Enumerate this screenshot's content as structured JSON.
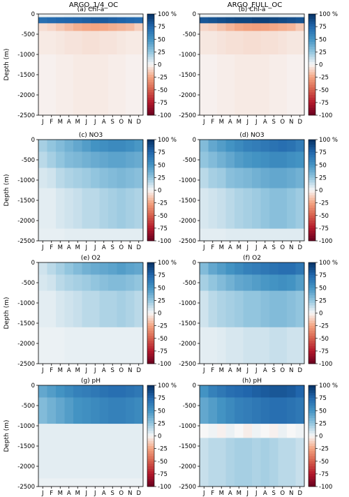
{
  "column_titles": [
    "ARGO_1/4_OC",
    "ARGO_FULL_OC"
  ],
  "colorbar": {
    "ticks": [
      100,
      75,
      50,
      25,
      0,
      -25,
      -50,
      -75,
      -100
    ],
    "tick_labels": [
      "100 %",
      "75",
      "50",
      "25",
      "0",
      "-25",
      "-50",
      "-75",
      "-100"
    ],
    "range": [
      -100,
      100
    ],
    "colormap": "RdBu",
    "colors": {
      "negative_end": "#67001f",
      "neutral": "#f7f7f7",
      "positive_end": "#053061"
    }
  },
  "chart_data": [
    {
      "type": "heatmap",
      "title": "(a) Chl-a",
      "ylabel": "Depth (m)",
      "ylim": [
        -2500,
        0
      ],
      "y_ticks": [
        0,
        -500,
        -1000,
        -1500,
        -2000,
        -2500
      ],
      "x_ticks": [
        "J",
        "F",
        "M",
        "A",
        "M",
        "J",
        "J",
        "A",
        "S",
        "O",
        "N",
        "D"
      ],
      "bands": [
        {
          "depth": [
            0,
            -80
          ],
          "values": [
            3,
            3,
            3,
            4,
            4,
            4,
            4,
            4,
            4,
            3,
            3,
            3
          ]
        },
        {
          "depth": [
            -80,
            -230
          ],
          "values": [
            70,
            72,
            74,
            75,
            76,
            78,
            80,
            80,
            78,
            76,
            74,
            72
          ]
        },
        {
          "depth": [
            -230,
            -420
          ],
          "values": [
            -8,
            -10,
            -14,
            -18,
            -22,
            -24,
            -25,
            -24,
            -22,
            -20,
            -18,
            -12
          ]
        },
        {
          "depth": [
            -420,
            -1000
          ],
          "values": [
            -4,
            -4,
            -5,
            -6,
            -6,
            -7,
            -7,
            -6,
            -6,
            -5,
            -4,
            -4
          ]
        },
        {
          "depth": [
            -1000,
            -2500
          ],
          "values": [
            -2,
            -2,
            -3,
            -3,
            -4,
            -4,
            -4,
            -4,
            -3,
            -3,
            -2,
            -2
          ]
        }
      ]
    },
    {
      "type": "heatmap",
      "title": "(b) Chl-a",
      "ylabel": "",
      "ylim": [
        -2500,
        0
      ],
      "y_ticks": [
        0,
        -500,
        -1000,
        -1500,
        -2000,
        -2500
      ],
      "x_ticks": [
        "J",
        "F",
        "M",
        "A",
        "M",
        "J",
        "J",
        "A",
        "S",
        "O",
        "N",
        "D"
      ],
      "bands": [
        {
          "depth": [
            0,
            -80
          ],
          "values": [
            3,
            3,
            3,
            4,
            4,
            4,
            4,
            4,
            4,
            3,
            3,
            3
          ]
        },
        {
          "depth": [
            -80,
            -230
          ],
          "values": [
            82,
            84,
            86,
            88,
            90,
            90,
            92,
            92,
            90,
            88,
            86,
            84
          ]
        },
        {
          "depth": [
            -230,
            -420
          ],
          "values": [
            -10,
            -12,
            -16,
            -20,
            -24,
            -26,
            -27,
            -26,
            -24,
            -22,
            -20,
            -14
          ]
        },
        {
          "depth": [
            -420,
            -1000
          ],
          "values": [
            -5,
            -5,
            -6,
            -7,
            -7,
            -8,
            -8,
            -7,
            -7,
            -6,
            -5,
            -5
          ]
        },
        {
          "depth": [
            -1000,
            -2500
          ],
          "values": [
            -2,
            -2,
            -3,
            -3,
            -4,
            -4,
            -4,
            -4,
            -3,
            -3,
            -2,
            -2
          ]
        }
      ]
    },
    {
      "type": "heatmap",
      "title": "(c) NO3",
      "ylabel": "Depth (m)",
      "ylim": [
        -2500,
        0
      ],
      "y_ticks": [
        0,
        -500,
        -1000,
        -1500,
        -2000,
        -2500
      ],
      "x_ticks": [
        "J",
        "F",
        "M",
        "A",
        "M",
        "J",
        "J",
        "A",
        "S",
        "O",
        "N",
        "D"
      ],
      "bands": [
        {
          "depth": [
            0,
            -300
          ],
          "values": [
            20,
            25,
            30,
            35,
            40,
            45,
            50,
            52,
            55,
            55,
            52,
            48
          ]
        },
        {
          "depth": [
            -300,
            -700
          ],
          "values": [
            15,
            20,
            25,
            30,
            32,
            35,
            38,
            40,
            42,
            42,
            40,
            38
          ]
        },
        {
          "depth": [
            -700,
            -1200
          ],
          "values": [
            8,
            10,
            15,
            18,
            20,
            22,
            25,
            28,
            30,
            32,
            30,
            28
          ]
        },
        {
          "depth": [
            -1200,
            -2200
          ],
          "values": [
            5,
            5,
            8,
            10,
            12,
            15,
            15,
            18,
            20,
            22,
            20,
            18
          ]
        },
        {
          "depth": [
            -2200,
            -2500
          ],
          "values": [
            4,
            4,
            4,
            5,
            5,
            5,
            5,
            5,
            5,
            5,
            5,
            5
          ]
        }
      ]
    },
    {
      "type": "heatmap",
      "title": "(d) NO3",
      "ylabel": "",
      "ylim": [
        -2500,
        0
      ],
      "y_ticks": [
        0,
        -500,
        -1000,
        -1500,
        -2000,
        -2500
      ],
      "x_ticks": [
        "J",
        "F",
        "M",
        "A",
        "M",
        "J",
        "J",
        "A",
        "S",
        "O",
        "N",
        "D"
      ],
      "bands": [
        {
          "depth": [
            0,
            -300
          ],
          "values": [
            30,
            40,
            45,
            50,
            55,
            60,
            62,
            65,
            68,
            70,
            68,
            62
          ]
        },
        {
          "depth": [
            -300,
            -700
          ],
          "values": [
            25,
            30,
            35,
            40,
            45,
            48,
            50,
            52,
            55,
            55,
            52,
            50
          ]
        },
        {
          "depth": [
            -700,
            -1200
          ],
          "values": [
            15,
            20,
            22,
            28,
            30,
            32,
            35,
            38,
            40,
            40,
            38,
            35
          ]
        },
        {
          "depth": [
            -1200,
            -2200
          ],
          "values": [
            8,
            10,
            12,
            15,
            18,
            20,
            22,
            25,
            28,
            28,
            25,
            22
          ]
        },
        {
          "depth": [
            -2200,
            -2500
          ],
          "values": [
            5,
            5,
            5,
            6,
            6,
            6,
            6,
            6,
            6,
            6,
            6,
            6
          ]
        }
      ]
    },
    {
      "type": "heatmap",
      "title": "(e) O2",
      "ylabel": "Depth (m)",
      "ylim": [
        -2500,
        0
      ],
      "y_ticks": [
        0,
        -500,
        -1000,
        -1500,
        -2000,
        -2500
      ],
      "x_ticks": [
        "J",
        "F",
        "M",
        "A",
        "M",
        "J",
        "J",
        "A",
        "S",
        "O",
        "N",
        "D"
      ],
      "bands": [
        {
          "depth": [
            0,
            -300
          ],
          "values": [
            10,
            15,
            20,
            25,
            30,
            35,
            38,
            40,
            42,
            45,
            42,
            40
          ]
        },
        {
          "depth": [
            -300,
            -700
          ],
          "values": [
            8,
            10,
            15,
            18,
            20,
            22,
            25,
            28,
            30,
            30,
            28,
            25
          ]
        },
        {
          "depth": [
            -700,
            -1600
          ],
          "values": [
            5,
            5,
            8,
            10,
            12,
            15,
            15,
            18,
            18,
            20,
            18,
            15
          ]
        },
        {
          "depth": [
            -1600,
            -2500
          ],
          "values": [
            3,
            3,
            3,
            4,
            4,
            4,
            4,
            4,
            4,
            4,
            4,
            4
          ]
        }
      ]
    },
    {
      "type": "heatmap",
      "title": "(f) O2",
      "ylabel": "",
      "ylim": [
        -2500,
        0
      ],
      "y_ticks": [
        0,
        -500,
        -1000,
        -1500,
        -2000,
        -2500
      ],
      "x_ticks": [
        "J",
        "F",
        "M",
        "A",
        "M",
        "J",
        "J",
        "A",
        "S",
        "O",
        "N",
        "D"
      ],
      "bands": [
        {
          "depth": [
            0,
            -300
          ],
          "values": [
            30,
            40,
            45,
            50,
            55,
            60,
            62,
            65,
            68,
            70,
            70,
            65
          ]
        },
        {
          "depth": [
            -300,
            -700
          ],
          "values": [
            20,
            25,
            30,
            35,
            40,
            42,
            45,
            48,
            50,
            52,
            50,
            45
          ]
        },
        {
          "depth": [
            -700,
            -1600
          ],
          "values": [
            10,
            15,
            18,
            20,
            22,
            25,
            25,
            28,
            30,
            30,
            28,
            25
          ]
        },
        {
          "depth": [
            -1600,
            -2500
          ],
          "values": [
            5,
            5,
            6,
            8,
            8,
            10,
            10,
            10,
            12,
            12,
            10,
            10
          ]
        }
      ]
    },
    {
      "type": "heatmap",
      "title": "(g) pH",
      "ylabel": "Depth (m)",
      "ylim": [
        -2500,
        0
      ],
      "y_ticks": [
        0,
        -500,
        -1000,
        -1500,
        -2000,
        -2500
      ],
      "x_ticks": [
        "J",
        "F",
        "M",
        "A",
        "M",
        "J",
        "J",
        "A",
        "S",
        "O",
        "N",
        "D"
      ],
      "bands": [
        {
          "depth": [
            0,
            -300
          ],
          "values": [
            40,
            45,
            50,
            55,
            60,
            62,
            65,
            68,
            70,
            70,
            68,
            65
          ]
        },
        {
          "depth": [
            -300,
            -950
          ],
          "values": [
            30,
            35,
            40,
            45,
            50,
            52,
            55,
            58,
            60,
            60,
            58,
            55
          ]
        },
        {
          "depth": [
            -950,
            -2300
          ],
          "values": [
            5,
            5,
            5,
            5,
            5,
            5,
            5,
            5,
            5,
            5,
            5,
            5
          ]
        },
        {
          "depth": [
            -2300,
            -2500
          ],
          "values": [
            3,
            3,
            3,
            3,
            3,
            3,
            3,
            3,
            3,
            3,
            3,
            3
          ]
        }
      ]
    },
    {
      "type": "heatmap",
      "title": "(h) pH",
      "ylabel": "",
      "ylim": [
        -2500,
        0
      ],
      "y_ticks": [
        0,
        -500,
        -1000,
        -1500,
        -2000,
        -2500
      ],
      "x_ticks": [
        "J",
        "F",
        "M",
        "A",
        "M",
        "J",
        "J",
        "A",
        "S",
        "O",
        "N",
        "D"
      ],
      "bands": [
        {
          "depth": [
            0,
            -300
          ],
          "values": [
            50,
            60,
            65,
            70,
            72,
            75,
            78,
            80,
            82,
            82,
            80,
            75
          ]
        },
        {
          "depth": [
            -300,
            -950
          ],
          "values": [
            40,
            45,
            50,
            55,
            60,
            62,
            65,
            68,
            70,
            70,
            68,
            65
          ]
        },
        {
          "depth": [
            -950,
            -1300
          ],
          "values": [
            0,
            2,
            -2,
            3,
            0,
            -3,
            2,
            0,
            -2,
            3,
            0,
            2
          ]
        },
        {
          "depth": [
            -1300,
            -2500
          ],
          "values": [
            12,
            15,
            15,
            18,
            20,
            20,
            18,
            20,
            18,
            15,
            15,
            12
          ]
        }
      ]
    }
  ]
}
